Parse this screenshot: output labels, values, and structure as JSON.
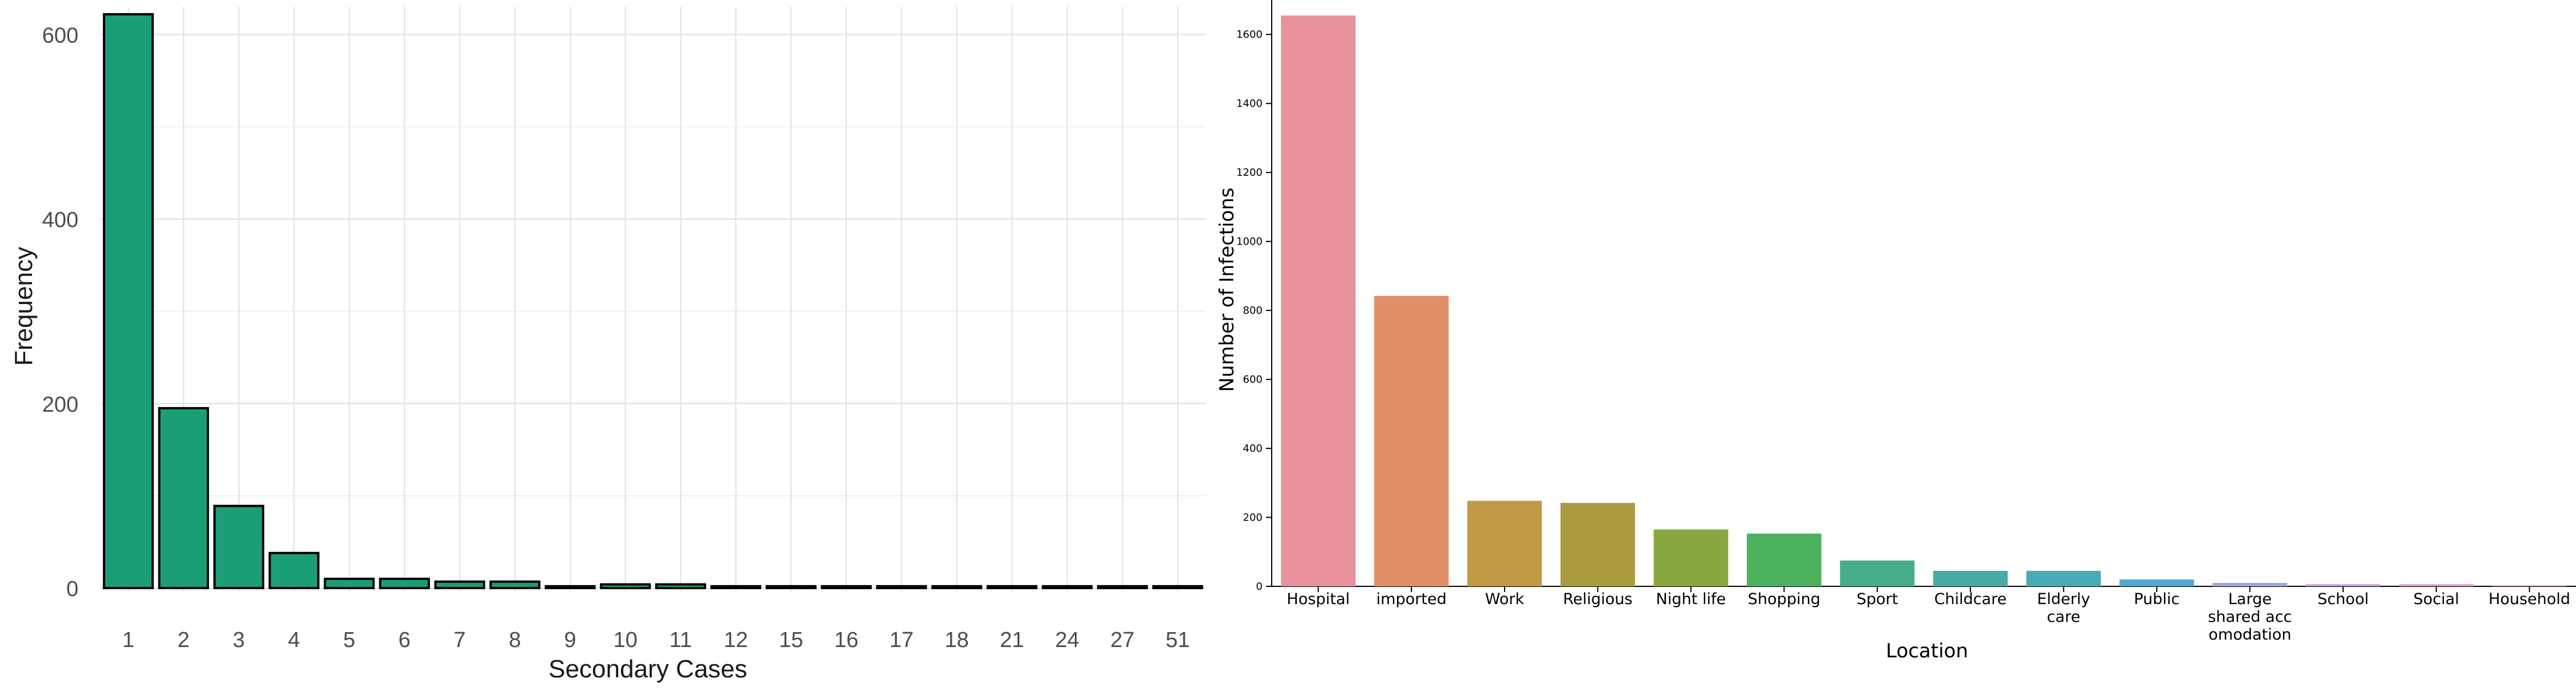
{
  "chart_data": [
    {
      "type": "bar",
      "title": "",
      "xlabel": "Secondary Cases",
      "ylabel": "Frequency",
      "categories": [
        "1",
        "2",
        "3",
        "4",
        "5",
        "6",
        "7",
        "8",
        "9",
        "10",
        "11",
        "12",
        "15",
        "16",
        "17",
        "18",
        "21",
        "24",
        "27",
        "51"
      ],
      "values": [
        622,
        195,
        89,
        38,
        10,
        10,
        7,
        7,
        2,
        4,
        4,
        2,
        2,
        2,
        2,
        2,
        2,
        2,
        2,
        2
      ],
      "ylim": [
        0,
        630
      ],
      "yticks": [
        0,
        200,
        400,
        600
      ],
      "grid": true,
      "bar_color": "#1b9e77",
      "bar_edge_color": "#000000"
    },
    {
      "type": "bar",
      "title": "",
      "xlabel": "Location",
      "ylabel": "Number of Infections",
      "categories": [
        "Hospital",
        "imported",
        "Work",
        "Religious",
        "Night life",
        "Shopping",
        "Sport",
        "Childcare",
        "Elderly care",
        "Public",
        "Large shared acc omodation",
        "School",
        "Social",
        "Household"
      ],
      "category_lines": [
        [
          "Hospital"
        ],
        [
          "imported"
        ],
        [
          "Work"
        ],
        [
          "Religious"
        ],
        [
          "Night life"
        ],
        [
          "Shopping"
        ],
        [
          "Sport"
        ],
        [
          "Childcare"
        ],
        [
          "Elderly",
          "care"
        ],
        [
          "Public"
        ],
        [
          "Large",
          "shared acc",
          "omodation"
        ],
        [
          "School"
        ],
        [
          "Social"
        ],
        [
          "Household"
        ]
      ],
      "values": [
        1655,
        842,
        248,
        242,
        165,
        153,
        75,
        45,
        45,
        20,
        10,
        6,
        6,
        3
      ],
      "ylim": [
        0,
        1700
      ],
      "yticks": [
        0,
        200,
        400,
        600,
        800,
        1000,
        1200,
        1400,
        1600
      ],
      "grid": false,
      "colors": [
        "#e8919d",
        "#e08f67",
        "#c09a45",
        "#ac9c40",
        "#88a83f",
        "#4cb15c",
        "#47ae8c",
        "#47aca4",
        "#4aaab6",
        "#52a8d2",
        "#9fa6e2",
        "#c69be0",
        "#de93d2",
        "#e590b8"
      ]
    }
  ]
}
